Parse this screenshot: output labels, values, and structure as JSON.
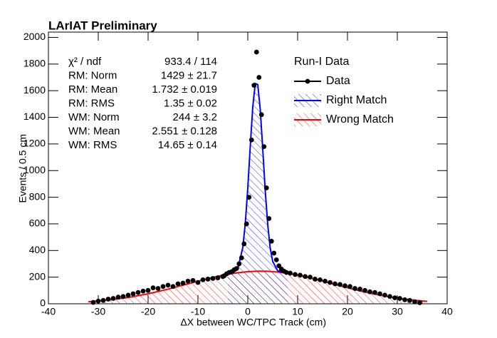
{
  "chart_data": {
    "type": "histogram-fit",
    "title": "LArIAT Preliminary",
    "xlabel": "ΔX between WC/TPC Track (cm)",
    "ylabel": "Events / 0.5 cm",
    "xlim": [
      -40,
      40
    ],
    "ylim": [
      0,
      2040
    ],
    "xticks": [
      -40,
      -30,
      -20,
      -10,
      0,
      10,
      20,
      30,
      40
    ],
    "yticks": [
      0,
      200,
      400,
      600,
      800,
      1000,
      1200,
      1400,
      1600,
      1800,
      2000
    ],
    "legend_title": "Run-I Data",
    "legend_position": "top right",
    "stats": [
      {
        "label": "χ² / ndf",
        "value": "933.4 / 114"
      },
      {
        "label": "RM: Norm",
        "value": "1429 ± 21.7"
      },
      {
        "label": "RM: Mean",
        "value": "1.732 ± 0.019"
      },
      {
        "label": "RM: RMS",
        "value": "1.35 ± 0.02"
      },
      {
        "label": "WM: Norm",
        "value": "244 ± 3.2"
      },
      {
        "label": "WM: Mean",
        "value": "2.551 ± 0.128"
      },
      {
        "label": "WM: RMS",
        "value": "14.65 ± 0.14"
      }
    ],
    "series": [
      {
        "name": "Data",
        "color": "#000000",
        "style": "markers",
        "x": [
          -31,
          -30,
          -29,
          -28,
          -27,
          -26,
          -25,
          -24,
          -23,
          -22,
          -21,
          -20,
          -19,
          -18,
          -17,
          -16,
          -15,
          -14,
          -13,
          -12,
          -11,
          -10,
          -9,
          -8,
          -7,
          -6,
          -5,
          -4.75,
          -4.25,
          -3.75,
          -3.25,
          -2.75,
          -2.25,
          -1.75,
          -1.25,
          -0.75,
          -0.25,
          0.25,
          0.75,
          1.25,
          1.75,
          2.25,
          2.75,
          3.25,
          3.75,
          4.25,
          4.75,
          5.25,
          5.75,
          6.25,
          6.75,
          7.25,
          7.75,
          8.5,
          9.5,
          10.5,
          11.5,
          12.5,
          13.5,
          14.5,
          15.5,
          16.5,
          17.5,
          18.5,
          19.5,
          20.5,
          21.5,
          22.5,
          23.5,
          24.5,
          25.5,
          26.5,
          27.5,
          28.5,
          29.5,
          30.5,
          31.5,
          32.5,
          33.5,
          34.5
        ],
        "values": [
          10,
          20,
          25,
          35,
          40,
          50,
          55,
          65,
          75,
          85,
          95,
          100,
          120,
          115,
          130,
          140,
          130,
          150,
          155,
          170,
          175,
          160,
          180,
          185,
          190,
          195,
          205,
          210,
          225,
          235,
          240,
          255,
          265,
          300,
          345,
          450,
          600,
          800,
          1230,
          1640,
          1890,
          1700,
          1420,
          1180,
          870,
          640,
          470,
          380,
          330,
          285,
          260,
          245,
          235,
          230,
          220,
          215,
          205,
          200,
          185,
          180,
          170,
          160,
          150,
          145,
          135,
          130,
          115,
          110,
          100,
          90,
          85,
          75,
          65,
          55,
          45,
          40,
          30,
          25,
          15,
          8
        ]
      },
      {
        "name": "Right Match",
        "color": "#0000ff",
        "style": "hatched-line",
        "x": [
          -4,
          -3,
          -2,
          -1,
          -0.5,
          0,
          0.5,
          1,
          1.5,
          2,
          2.5,
          3,
          3.5,
          4,
          4.5,
          5,
          6,
          7,
          8
        ],
        "values": [
          222,
          231,
          264,
          423,
          605,
          870,
          1187,
          1479,
          1654,
          1646,
          1459,
          1162,
          850,
          593,
          418,
          318,
          248,
          235,
          229
        ]
      },
      {
        "name": "Wrong Match",
        "color": "#ff0000",
        "style": "hatched-line",
        "x": [
          -32,
          -28,
          -24,
          -20,
          -16,
          -12,
          -8,
          -6,
          -4,
          -2,
          0,
          2,
          4,
          6,
          8,
          10,
          14,
          18,
          22,
          26,
          30,
          34,
          36
        ],
        "values": [
          15,
          28,
          47,
          75,
          110,
          150,
          189,
          207,
          222,
          233,
          241,
          245,
          244,
          238,
          229,
          215,
          181,
          140,
          101,
          68,
          42,
          25,
          18
        ]
      }
    ]
  }
}
